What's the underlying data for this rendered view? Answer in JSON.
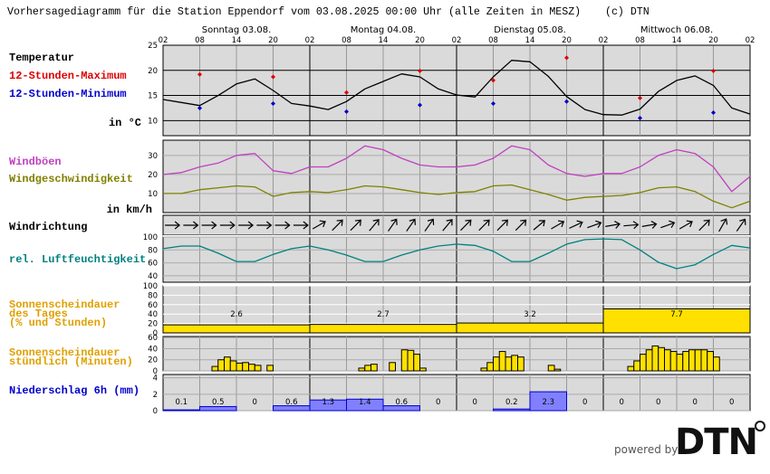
{
  "header": {
    "title": "Vorhersagediagramm für die Station Eppendorf vom 03.08.2025 00:00 Uhr (alle Zeiten in MESZ)",
    "copyright": "(c) DTN"
  },
  "time_axis": {
    "days": [
      "Sonntag 03.08.",
      "Montag 04.08.",
      "Dienstag 05.08.",
      "Mittwoch 06.08."
    ],
    "hour_labels": [
      "02",
      "08",
      "14",
      "20",
      "02",
      "08",
      "14",
      "20",
      "02",
      "08",
      "14",
      "20",
      "02",
      "08",
      "14",
      "20",
      "02"
    ]
  },
  "chart_data": [
    {
      "type": "line",
      "title": "Temperatur",
      "unit_label": "in °C",
      "ylim": [
        7,
        25
      ],
      "yticks": [
        10,
        15,
        20,
        25
      ],
      "series": [
        {
          "color": "#000000",
          "values": [
            14.2,
            13.6,
            13.0,
            15.0,
            17.3,
            18.3,
            16.0,
            13.4,
            12.9,
            12.2,
            13.8,
            16.3,
            17.8,
            19.3,
            18.7,
            16.3,
            15.1,
            14.7,
            18.7,
            22.0,
            21.7,
            18.8,
            14.8,
            12.2,
            11.2,
            11.1,
            12.3,
            15.8,
            18.0,
            18.9,
            17.0,
            12.5,
            11.3
          ]
        },
        {
          "name": "12-Stunden-Maximum",
          "color": "#dd0000",
          "marker": true,
          "values": [
            19.2,
            18.7,
            15.6,
            19.9,
            18.0,
            22.5,
            14.5,
            19.9
          ]
        },
        {
          "name": "12-Stunden-Minimum",
          "color": "#0000cc",
          "marker": true,
          "values": [
            12.5,
            13.4,
            11.8,
            13.1,
            13.4,
            13.8,
            10.5,
            11.6
          ]
        }
      ]
    },
    {
      "type": "line",
      "unit_label": "in km/h",
      "ylim": [
        0,
        38
      ],
      "yticks": [
        10,
        20,
        30
      ],
      "series": [
        {
          "name": "Windböen",
          "color": "#c040c0",
          "values": [
            20,
            21,
            24,
            26,
            30,
            31,
            22,
            20.5,
            24,
            24,
            28.5,
            35,
            33,
            28.5,
            25,
            24,
            24,
            25,
            28.5,
            35,
            33,
            25,
            20.5,
            19,
            20.5,
            20.5,
            24,
            30,
            33,
            31,
            24,
            11,
            19
          ]
        },
        {
          "name": "Windgeschwindigkeit",
          "color": "#808000",
          "values": [
            10,
            10,
            12,
            13,
            14,
            13.5,
            8.5,
            10.5,
            11,
            10.5,
            12,
            14,
            13.5,
            12,
            10.5,
            9.5,
            10.5,
            11,
            14,
            14.5,
            12,
            9.5,
            6.5,
            8,
            8.5,
            9,
            10.5,
            13,
            13.5,
            11,
            6,
            2.5,
            6
          ]
        }
      ]
    },
    {
      "type": "arrows",
      "title": "Windrichtung",
      "values": [
        270,
        270,
        270,
        270,
        270,
        270,
        270,
        270,
        240,
        225,
        225,
        220,
        215,
        215,
        215,
        220,
        225,
        225,
        225,
        225,
        230,
        240,
        245,
        250,
        260,
        265,
        260,
        250,
        240,
        225,
        210,
        215
      ]
    },
    {
      "type": "line",
      "ylim": [
        30,
        100
      ],
      "yticks": [
        40,
        60,
        80,
        100
      ],
      "series": [
        {
          "name": "rel. Luftfeuchtigkeit",
          "color": "#008080",
          "values": [
            82,
            86,
            86,
            75,
            62,
            62,
            73,
            82,
            86,
            80,
            72,
            62,
            62,
            72,
            80,
            86,
            89,
            87,
            78,
            62,
            62,
            75,
            89,
            96,
            97,
            96,
            80,
            61,
            51,
            57,
            73,
            87,
            83
          ]
        }
      ]
    },
    {
      "type": "bar",
      "title": [
        "Sonnenscheindauer",
        "des Tages",
        "(% und Stunden)"
      ],
      "color": "#ffe000",
      "ylim": [
        0,
        100
      ],
      "yticks": [
        0,
        20,
        40,
        60,
        80,
        100
      ],
      "values": [
        17,
        18,
        21,
        51
      ],
      "hours": [
        2.6,
        2.7,
        3.2,
        7.7
      ]
    },
    {
      "type": "bar",
      "title": [
        "Sonnenscheindauer",
        "stündlich (Minuten)"
      ],
      "color": "#ffe000",
      "ylim": [
        0,
        62
      ],
      "yticks": [
        0,
        20,
        40,
        60
      ],
      "values": [
        0,
        0,
        0,
        0,
        0,
        0,
        0,
        0,
        8,
        20,
        25,
        18,
        14,
        15,
        12,
        10,
        0,
        10,
        0,
        0,
        0,
        0,
        0,
        0,
        0,
        0,
        0,
        0,
        0,
        0,
        0,
        0,
        5,
        10,
        12,
        0,
        0,
        15,
        0,
        38,
        37,
        30,
        5,
        0,
        0,
        0,
        0,
        0,
        0,
        0,
        0,
        0,
        5,
        15,
        25,
        35,
        25,
        28,
        25,
        0,
        0,
        0,
        0,
        10,
        3,
        0,
        0,
        0,
        0,
        0,
        0,
        0,
        0,
        0,
        0,
        0,
        8,
        18,
        30,
        38,
        45,
        42,
        38,
        35,
        30,
        35,
        38,
        38,
        38,
        35,
        25,
        0,
        0,
        0,
        0,
        0
      ]
    },
    {
      "type": "bar",
      "title": "Niederschlag 6h (mm)",
      "color": "#8080ff",
      "ylim": [
        0,
        4.4
      ],
      "yticks": [
        0,
        2,
        4
      ],
      "values": [
        0.1,
        0.5,
        0,
        0.6,
        1.3,
        1.4,
        0.6,
        0,
        0,
        0.2,
        2.3,
        0,
        0,
        0,
        0,
        0
      ]
    }
  ],
  "footer": {
    "powered": "powered by",
    "logo": "DTN"
  }
}
